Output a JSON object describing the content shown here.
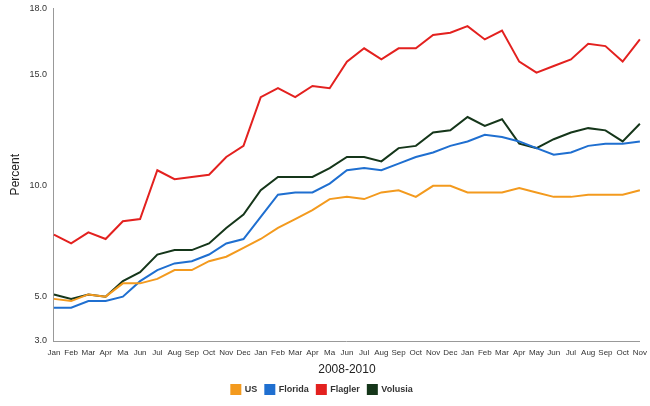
{
  "chart_data": {
    "type": "line",
    "x_label": "2008-2010",
    "y_label": "Percent",
    "categories": [
      "Jan",
      "Feb",
      "Mar",
      "Apr",
      "Ma",
      "Jun",
      "Jul",
      "Aug",
      "Sep",
      "Oct",
      "Nov",
      "Dec",
      "Jan",
      "Feb",
      "Mar",
      "Apr",
      "Ma",
      "Jun",
      "Jul",
      "Aug",
      "Sep",
      "Oct",
      "Nov",
      "Dec",
      "Jan",
      "Feb",
      "Mar",
      "Apr",
      "May",
      "Jun",
      "Jul",
      "Aug",
      "Sep",
      "Oct",
      "Nov"
    ],
    "series": [
      {
        "name": "US",
        "color": "#f39a1e",
        "values": [
          4.9,
          4.8,
          5.1,
          5.0,
          5.6,
          5.6,
          5.8,
          6.2,
          6.2,
          6.6,
          6.8,
          7.2,
          7.6,
          8.1,
          8.5,
          8.9,
          9.4,
          9.5,
          9.4,
          9.7,
          9.8,
          9.5,
          10.0,
          10.0,
          9.7,
          9.7,
          9.7,
          9.9,
          9.7,
          9.5,
          9.5,
          9.6,
          9.6,
          9.6,
          9.8
        ]
      },
      {
        "name": "Florida",
        "color": "#1f6fd0",
        "values": [
          4.5,
          4.5,
          4.8,
          4.8,
          5.0,
          5.7,
          6.2,
          6.5,
          6.6,
          6.9,
          7.4,
          7.6,
          8.6,
          9.6,
          9.7,
          9.7,
          10.1,
          10.7,
          10.8,
          10.7,
          11.0,
          11.3,
          11.5,
          11.8,
          12.0,
          12.3,
          12.2,
          12.0,
          11.7,
          11.4,
          11.5,
          11.8,
          11.9,
          11.9,
          12.0
        ]
      },
      {
        "name": "Flagler",
        "color": "#e3211f",
        "values": [
          7.8,
          7.4,
          7.9,
          7.6,
          8.4,
          8.5,
          10.7,
          10.3,
          10.4,
          10.5,
          11.3,
          11.8,
          14.0,
          14.4,
          14.0,
          14.5,
          14.4,
          15.6,
          16.2,
          15.7,
          16.2,
          16.2,
          16.8,
          16.9,
          17.2,
          16.6,
          17.0,
          15.6,
          15.1,
          15.4,
          15.7,
          16.4,
          16.3,
          15.6,
          16.6
        ]
      },
      {
        "name": "Volusia",
        "color": "#15361a",
        "values": [
          5.1,
          4.9,
          5.1,
          5.0,
          5.7,
          6.1,
          6.9,
          7.1,
          7.1,
          7.4,
          8.1,
          8.7,
          9.8,
          10.4,
          10.4,
          10.4,
          10.8,
          11.3,
          11.3,
          11.1,
          11.7,
          11.8,
          12.4,
          12.5,
          13.1,
          12.7,
          13.0,
          11.9,
          11.7,
          12.1,
          12.4,
          12.6,
          12.5,
          12.0,
          12.8
        ]
      }
    ],
    "ylim": [
      3,
      18
    ],
    "yticks": [
      {
        "value": 3,
        "label": "3.0"
      },
      {
        "value": 5,
        "label": "5.0"
      },
      {
        "value": 10,
        "label": "10.0"
      },
      {
        "value": 15,
        "label": "15.0"
      },
      {
        "value": 18,
        "label": "18.0"
      }
    ],
    "grid": false,
    "legend": "bottom"
  }
}
